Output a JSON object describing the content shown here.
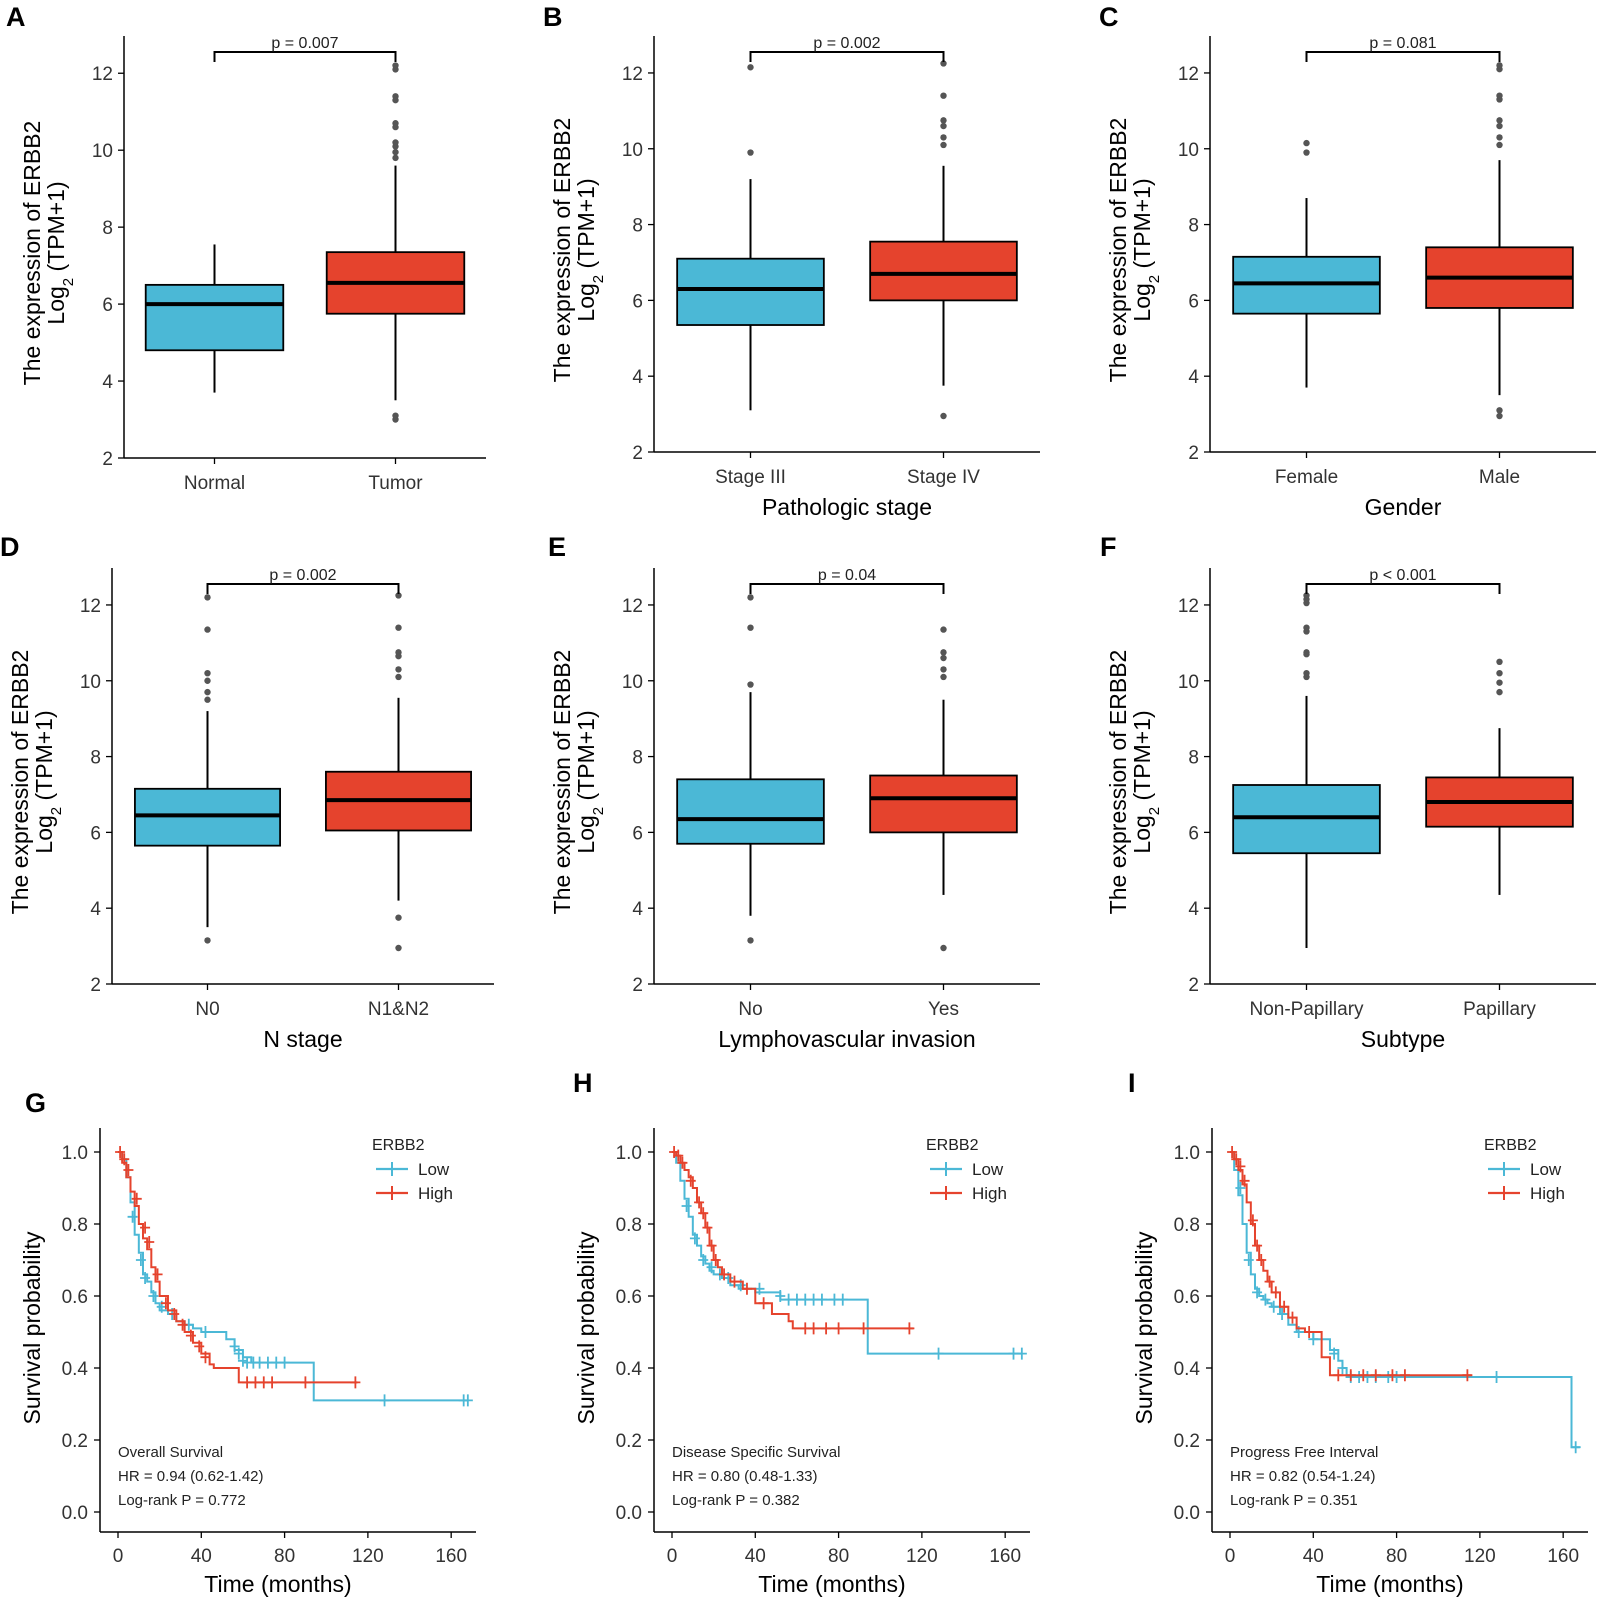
{
  "colors": {
    "low": "#4bb8d6",
    "high": "#e5432d",
    "outlier": "#555555",
    "axis": "#000000"
  },
  "chart_data": [
    {
      "id": "A",
      "type": "box",
      "letter": "A",
      "ylabel": "The expression of ERBB2",
      "ylabel2_pre": "Log",
      "ylabel2_sub": "2",
      "ylabel2_post": " (TPM+1)",
      "xlabel": "",
      "ylim": [
        2,
        12.5
      ],
      "yticks": [
        2,
        4,
        6,
        8,
        10,
        12
      ],
      "pvalue": "p = 0.007",
      "groups": [
        {
          "name": "Normal",
          "color": "low",
          "min": 3.7,
          "q1": 4.8,
          "median": 6.0,
          "q3": 6.5,
          "max": 7.55,
          "outliers": []
        },
        {
          "name": "Tumor",
          "color": "high",
          "min": 3.5,
          "q1": 5.75,
          "median": 6.55,
          "q3": 7.35,
          "max": 9.6,
          "outliers": [
            3.0,
            3.1,
            9.8,
            9.95,
            10.1,
            10.2,
            10.6,
            10.7,
            11.3,
            11.4,
            12.1,
            12.2
          ]
        }
      ]
    },
    {
      "id": "B",
      "type": "box",
      "letter": "B",
      "ylabel": "The expression of ERBB2",
      "ylabel2_pre": "Log",
      "ylabel2_sub": "2",
      "ylabel2_post": " (TPM+1)",
      "xlabel": "Pathologic stage",
      "ylim": [
        2,
        12.5
      ],
      "yticks": [
        2,
        4,
        6,
        8,
        10,
        12
      ],
      "pvalue": "p = 0.002",
      "groups": [
        {
          "name": "Stage III",
          "color": "low",
          "min": 3.1,
          "q1": 5.35,
          "median": 6.3,
          "q3": 7.1,
          "max": 9.2,
          "outliers": [
            9.9,
            12.15
          ]
        },
        {
          "name": "Stage IV",
          "color": "high",
          "min": 3.75,
          "q1": 6.0,
          "median": 6.7,
          "q3": 7.55,
          "max": 9.55,
          "outliers": [
            2.95,
            10.1,
            10.3,
            10.6,
            10.75,
            11.4,
            12.25
          ]
        }
      ]
    },
    {
      "id": "C",
      "type": "box",
      "letter": "C",
      "ylabel": "The expression of ERBB2",
      "ylabel2_pre": "Log",
      "ylabel2_sub": "2",
      "ylabel2_post": " (TPM+1)",
      "xlabel": "Gender",
      "ylim": [
        2,
        12.5
      ],
      "yticks": [
        2,
        4,
        6,
        8,
        10,
        12
      ],
      "pvalue": "p = 0.081",
      "groups": [
        {
          "name": "Female",
          "color": "low",
          "min": 3.7,
          "q1": 5.65,
          "median": 6.45,
          "q3": 7.15,
          "max": 8.7,
          "outliers": [
            9.9,
            10.15
          ]
        },
        {
          "name": "Male",
          "color": "high",
          "min": 3.5,
          "q1": 5.8,
          "median": 6.6,
          "q3": 7.4,
          "max": 9.7,
          "outliers": [
            2.95,
            3.1,
            10.1,
            10.3,
            10.6,
            10.75,
            11.3,
            11.4,
            12.1,
            12.2
          ]
        }
      ]
    },
    {
      "id": "D",
      "type": "box",
      "letter": "D",
      "ylabel": "The expression of ERBB2",
      "ylabel2_pre": "Log",
      "ylabel2_sub": "2",
      "ylabel2_post": " (TPM+1)",
      "xlabel": "N stage",
      "ylim": [
        2,
        12.5
      ],
      "yticks": [
        2,
        4,
        6,
        8,
        10,
        12
      ],
      "pvalue": "p = 0.002",
      "groups": [
        {
          "name": "N0",
          "color": "low",
          "min": 3.5,
          "q1": 5.65,
          "median": 6.45,
          "q3": 7.15,
          "max": 9.2,
          "outliers": [
            3.15,
            9.5,
            9.7,
            10.0,
            10.2,
            11.35,
            12.2
          ]
        },
        {
          "name": "N1&N2",
          "color": "high",
          "min": 4.2,
          "q1": 6.05,
          "median": 6.85,
          "q3": 7.6,
          "max": 9.55,
          "outliers": [
            2.95,
            3.75,
            10.1,
            10.3,
            10.65,
            10.75,
            11.4,
            12.25
          ]
        }
      ]
    },
    {
      "id": "E",
      "type": "box",
      "letter": "E",
      "ylabel": "The expression of ERBB2",
      "ylabel2_pre": "Log",
      "ylabel2_sub": "2",
      "ylabel2_post": " (TPM+1)",
      "xlabel": "Lymphovascular invasion",
      "ylim": [
        2,
        12.5
      ],
      "yticks": [
        2,
        4,
        6,
        8,
        10,
        12
      ],
      "pvalue": "p = 0.04",
      "groups": [
        {
          "name": "No",
          "color": "low",
          "min": 3.8,
          "q1": 5.7,
          "median": 6.35,
          "q3": 7.4,
          "max": 9.7,
          "outliers": [
            3.15,
            9.9,
            11.4,
            12.2
          ]
        },
        {
          "name": "Yes",
          "color": "high",
          "min": 4.35,
          "q1": 6.0,
          "median": 6.9,
          "q3": 7.5,
          "max": 9.5,
          "outliers": [
            2.95,
            10.1,
            10.3,
            10.6,
            10.75,
            11.35
          ]
        }
      ]
    },
    {
      "id": "F",
      "type": "box",
      "letter": "F",
      "ylabel": "The expression of ERBB2",
      "ylabel2_pre": "Log",
      "ylabel2_sub": "2",
      "ylabel2_post": " (TPM+1)",
      "xlabel": "Subtype",
      "ylim": [
        2,
        12.5
      ],
      "yticks": [
        2,
        4,
        6,
        8,
        10,
        12
      ],
      "pvalue": "p < 0.001",
      "groups": [
        {
          "name": "Non-Papillary",
          "color": "low",
          "min": 2.95,
          "q1": 5.45,
          "median": 6.4,
          "q3": 7.25,
          "max": 9.6,
          "outliers": [
            10.1,
            10.2,
            10.7,
            10.75,
            11.3,
            11.4,
            12.05,
            12.15,
            12.25
          ]
        },
        {
          "name": "Papillary",
          "color": "high",
          "min": 4.35,
          "q1": 6.15,
          "median": 6.8,
          "q3": 7.45,
          "max": 8.75,
          "outliers": [
            9.7,
            9.95,
            10.2,
            10.5
          ]
        }
      ]
    },
    {
      "id": "G",
      "type": "line",
      "letter": "G",
      "ylabel": "Survival probability",
      "xlabel": "Time (months)",
      "xlim": [
        0,
        170
      ],
      "ylim": [
        0,
        1.05
      ],
      "xticks": [
        0,
        40,
        80,
        120,
        160
      ],
      "yticks": [
        0.0,
        0.2,
        0.4,
        0.6,
        0.8,
        1.0
      ],
      "ytick_labels": [
        "0.0",
        "0.2",
        "0.4",
        "0.6",
        "0.8",
        "1.0"
      ],
      "legend_title": "ERBB2",
      "legend_labels": [
        "Low",
        "High"
      ],
      "annotations": [
        "Overall Survival",
        "HR = 0.94 (0.62-1.42)",
        "Log-rank P = 0.772"
      ],
      "series": [
        {
          "name": "Low",
          "color": "low",
          "x": [
            0,
            2,
            4,
            6,
            8,
            10,
            12,
            14,
            16,
            18,
            20,
            24,
            28,
            32,
            36,
            40,
            46,
            52,
            56,
            60,
            64,
            94,
            168
          ],
          "y": [
            1.0,
            0.98,
            0.93,
            0.86,
            0.77,
            0.72,
            0.66,
            0.64,
            0.61,
            0.58,
            0.56,
            0.55,
            0.53,
            0.52,
            0.51,
            0.5,
            0.5,
            0.48,
            0.45,
            0.43,
            0.415,
            0.31,
            0.31
          ],
          "censor_x": [
            7,
            11,
            13,
            17,
            21,
            26,
            34,
            42,
            56,
            58,
            60,
            62,
            65,
            68,
            72,
            76,
            80,
            128,
            166,
            168
          ],
          "censor_y": [
            0.82,
            0.7,
            0.65,
            0.6,
            0.57,
            0.55,
            0.52,
            0.5,
            0.46,
            0.44,
            0.42,
            0.415,
            0.415,
            0.415,
            0.415,
            0.415,
            0.415,
            0.31,
            0.31,
            0.31
          ]
        },
        {
          "name": "High",
          "color": "high",
          "x": [
            0,
            2,
            4,
            6,
            8,
            10,
            12,
            14,
            16,
            18,
            20,
            24,
            28,
            32,
            36,
            40,
            44,
            46,
            58,
            115
          ],
          "y": [
            1.0,
            0.97,
            0.93,
            0.89,
            0.85,
            0.8,
            0.76,
            0.73,
            0.68,
            0.64,
            0.6,
            0.56,
            0.53,
            0.5,
            0.47,
            0.44,
            0.41,
            0.4,
            0.36,
            0.36
          ],
          "censor_x": [
            1,
            3,
            5,
            9,
            13,
            15,
            19,
            23,
            27,
            31,
            35,
            39,
            42,
            62,
            66,
            70,
            74,
            90,
            114
          ],
          "censor_y": [
            1.0,
            0.98,
            0.95,
            0.87,
            0.79,
            0.75,
            0.66,
            0.58,
            0.55,
            0.52,
            0.49,
            0.46,
            0.43,
            0.36,
            0.36,
            0.36,
            0.36,
            0.36,
            0.36
          ]
        }
      ]
    },
    {
      "id": "H",
      "type": "line",
      "letter": "H",
      "ylabel": "Survival probability",
      "xlabel": "Time (months)",
      "xlim": [
        0,
        170
      ],
      "ylim": [
        0,
        1.05
      ],
      "xticks": [
        0,
        40,
        80,
        120,
        160
      ],
      "yticks": [
        0.0,
        0.2,
        0.4,
        0.6,
        0.8,
        1.0
      ],
      "ytick_labels": [
        "0.0",
        "0.2",
        "0.4",
        "0.6",
        "0.8",
        "1.0"
      ],
      "legend_title": "ERBB2",
      "legend_labels": [
        "Low",
        "High"
      ],
      "annotations": [
        "Disease Specific Survival",
        "HR = 0.80 (0.48-1.33)",
        "Log-rank P = 0.382"
      ],
      "series": [
        {
          "name": "Low",
          "color": "low",
          "x": [
            0,
            2,
            4,
            6,
            8,
            10,
            12,
            14,
            16,
            18,
            20,
            24,
            28,
            32,
            40,
            52,
            94,
            168
          ],
          "y": [
            1.0,
            0.97,
            0.92,
            0.87,
            0.82,
            0.77,
            0.74,
            0.71,
            0.69,
            0.67,
            0.66,
            0.65,
            0.63,
            0.62,
            0.61,
            0.59,
            0.44,
            0.44
          ],
          "censor_x": [
            7,
            11,
            15,
            19,
            23,
            27,
            33,
            42,
            52,
            56,
            60,
            64,
            68,
            72,
            78,
            82,
            128,
            164,
            168
          ],
          "censor_y": [
            0.85,
            0.76,
            0.7,
            0.68,
            0.66,
            0.65,
            0.63,
            0.62,
            0.6,
            0.59,
            0.59,
            0.59,
            0.59,
            0.59,
            0.59,
            0.59,
            0.44,
            0.44,
            0.44
          ]
        },
        {
          "name": "High",
          "color": "high",
          "x": [
            0,
            2,
            4,
            6,
            8,
            10,
            12,
            14,
            16,
            18,
            20,
            22,
            24,
            28,
            34,
            40,
            48,
            56,
            58,
            116
          ],
          "y": [
            1.0,
            0.99,
            0.97,
            0.95,
            0.93,
            0.9,
            0.86,
            0.83,
            0.79,
            0.74,
            0.7,
            0.68,
            0.66,
            0.64,
            0.62,
            0.58,
            0.55,
            0.53,
            0.51,
            0.51
          ],
          "censor_x": [
            1,
            3,
            5,
            9,
            13,
            15,
            17,
            19,
            21,
            25,
            30,
            36,
            44,
            64,
            68,
            74,
            80,
            92,
            114
          ],
          "censor_y": [
            1.0,
            0.99,
            0.97,
            0.92,
            0.86,
            0.83,
            0.79,
            0.74,
            0.7,
            0.66,
            0.64,
            0.62,
            0.58,
            0.51,
            0.51,
            0.51,
            0.51,
            0.51,
            0.51
          ]
        }
      ]
    },
    {
      "id": "I",
      "type": "line",
      "letter": "I",
      "ylabel": "Survival probability",
      "xlabel": "Time (months)",
      "xlim": [
        0,
        170
      ],
      "ylim": [
        0,
        1.05
      ],
      "xticks": [
        0,
        40,
        80,
        120,
        160
      ],
      "yticks": [
        0.0,
        0.2,
        0.4,
        0.6,
        0.8,
        1.0
      ],
      "ytick_labels": [
        "0.0",
        "0.2",
        "0.4",
        "0.6",
        "0.8",
        "1.0"
      ],
      "legend_title": "ERBB2",
      "legend_labels": [
        "Low",
        "High"
      ],
      "annotations": [
        "Progress Free Interval",
        "HR = 0.82 (0.54-1.24)",
        "Log-rank P = 0.351"
      ],
      "series": [
        {
          "name": "Low",
          "color": "low",
          "x": [
            0,
            2,
            4,
            6,
            8,
            10,
            12,
            14,
            16,
            18,
            20,
            24,
            28,
            32,
            40,
            48,
            52,
            54,
            56,
            164,
            168
          ],
          "y": [
            1.0,
            0.95,
            0.88,
            0.8,
            0.72,
            0.66,
            0.62,
            0.6,
            0.59,
            0.58,
            0.57,
            0.55,
            0.52,
            0.5,
            0.48,
            0.45,
            0.42,
            0.4,
            0.375,
            0.18,
            0.18
          ],
          "censor_x": [
            5,
            9,
            13,
            17,
            21,
            25,
            33,
            40,
            50,
            54,
            58,
            62,
            66,
            70,
            76,
            80,
            128,
            166
          ],
          "censor_y": [
            0.9,
            0.7,
            0.61,
            0.59,
            0.57,
            0.55,
            0.5,
            0.48,
            0.44,
            0.4,
            0.375,
            0.375,
            0.375,
            0.375,
            0.375,
            0.375,
            0.375,
            0.18
          ]
        },
        {
          "name": "High",
          "color": "high",
          "x": [
            0,
            2,
            4,
            6,
            8,
            10,
            12,
            14,
            16,
            18,
            20,
            24,
            28,
            32,
            36,
            40,
            44,
            48,
            116
          ],
          "y": [
            1.0,
            0.98,
            0.95,
            0.91,
            0.86,
            0.8,
            0.74,
            0.7,
            0.67,
            0.64,
            0.61,
            0.57,
            0.54,
            0.51,
            0.5,
            0.5,
            0.43,
            0.38,
            0.38
          ],
          "censor_x": [
            1,
            3,
            5,
            7,
            11,
            13,
            15,
            19,
            22,
            26,
            30,
            38,
            52,
            58,
            64,
            70,
            78,
            84,
            114
          ],
          "censor_y": [
            1.0,
            0.98,
            0.96,
            0.92,
            0.81,
            0.74,
            0.7,
            0.64,
            0.61,
            0.57,
            0.54,
            0.5,
            0.38,
            0.38,
            0.38,
            0.38,
            0.38,
            0.38,
            0.38
          ]
        }
      ]
    }
  ]
}
